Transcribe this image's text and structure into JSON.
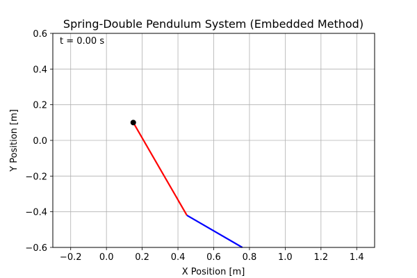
{
  "chart_data": {
    "type": "line",
    "title": "Spring-Double Pendulum System (Embedded Method)",
    "xlabel": "X Position [m]",
    "ylabel": "Y Position [m]",
    "xlim": [
      -0.3,
      1.5
    ],
    "ylim": [
      -0.6,
      0.6
    ],
    "xticks": [
      -0.2,
      0.0,
      0.2,
      0.4,
      0.6,
      0.8,
      1.0,
      1.2,
      1.4
    ],
    "xtick_labels": [
      "−0.2",
      "0.0",
      "0.2",
      "0.4",
      "0.6",
      "0.8",
      "1.0",
      "1.2",
      "1.4"
    ],
    "yticks": [
      -0.6,
      -0.4,
      -0.2,
      0.0,
      0.2,
      0.4,
      0.6
    ],
    "ytick_labels": [
      "−0.6",
      "−0.4",
      "−0.2",
      "0.0",
      "0.2",
      "0.4",
      "0.6"
    ],
    "grid": true,
    "annotation": "t = 0.00 s",
    "pivot": {
      "x": 0.15,
      "y": 0.1
    },
    "series": [
      {
        "color": "#ff0000",
        "points": [
          [
            0.15,
            0.1
          ],
          [
            0.45,
            -0.42
          ]
        ]
      },
      {
        "color": "#0000ff",
        "points": [
          [
            0.45,
            -0.42
          ],
          [
            0.76,
            -0.6
          ]
        ]
      }
    ],
    "pivot_color": "#000000"
  }
}
